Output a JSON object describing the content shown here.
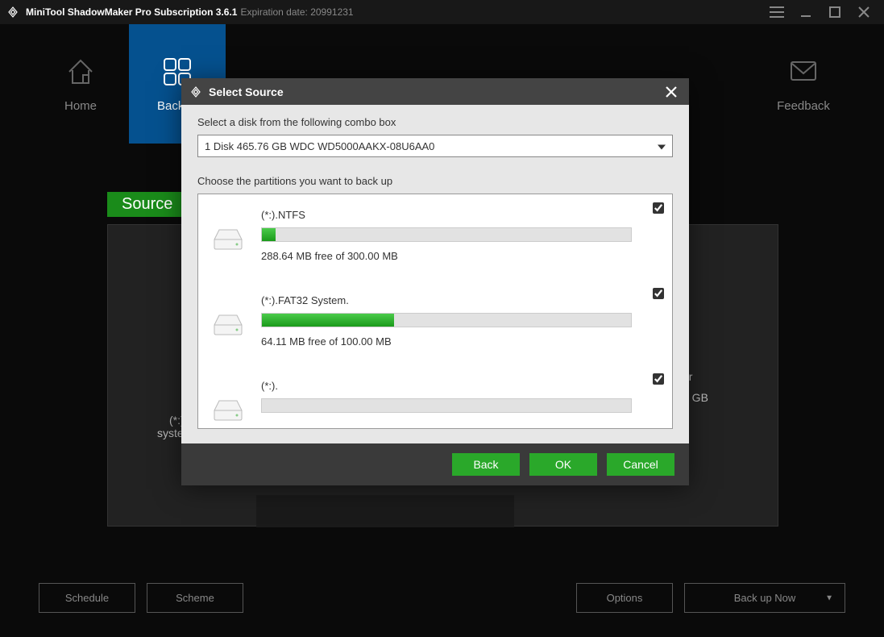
{
  "titlebar": {
    "app_name": "MiniTool ShadowMaker Pro Subscription 3.6.1",
    "expiration": "Expiration date: 20991231"
  },
  "nav": {
    "home": "Home",
    "backup": "Backup",
    "feedback": "Feedback"
  },
  "background": {
    "source_label": "Source",
    "left_text1": "(*:).",
    "left_text2": "system",
    "right_text1": "er",
    "right_text2": "1 GB"
  },
  "footer": {
    "schedule": "Schedule",
    "scheme": "Scheme",
    "options": "Options",
    "backup_now": "Back up Now"
  },
  "modal": {
    "title": "Select Source",
    "disk_label": "Select a disk from the following combo box",
    "disk_selected": "1 Disk 465.76 GB WDC WD5000AAKX-08U6AA0",
    "partition_label": "Choose the partitions you want to back up",
    "partitions": [
      {
        "title": "(*:).NTFS",
        "free_text": "288.64 MB free of 300.00 MB",
        "used_pct": 3.8,
        "checked": true
      },
      {
        "title": "(*:).FAT32 System.",
        "free_text": "64.11 MB free of 100.00 MB",
        "used_pct": 35.9,
        "checked": true
      },
      {
        "title": "(*:).",
        "free_text": "",
        "used_pct": 0,
        "checked": true
      }
    ],
    "buttons": {
      "back": "Back",
      "ok": "OK",
      "cancel": "Cancel"
    }
  },
  "colors": {
    "accent_green": "#2aa82a",
    "nav_active": "#05518f",
    "progress_start": "#4acb4a",
    "progress_end": "#1a9a1a",
    "modal_bg": "#e7e7e7",
    "modal_header": "#444444",
    "app_bg": "#0a0a0a"
  }
}
